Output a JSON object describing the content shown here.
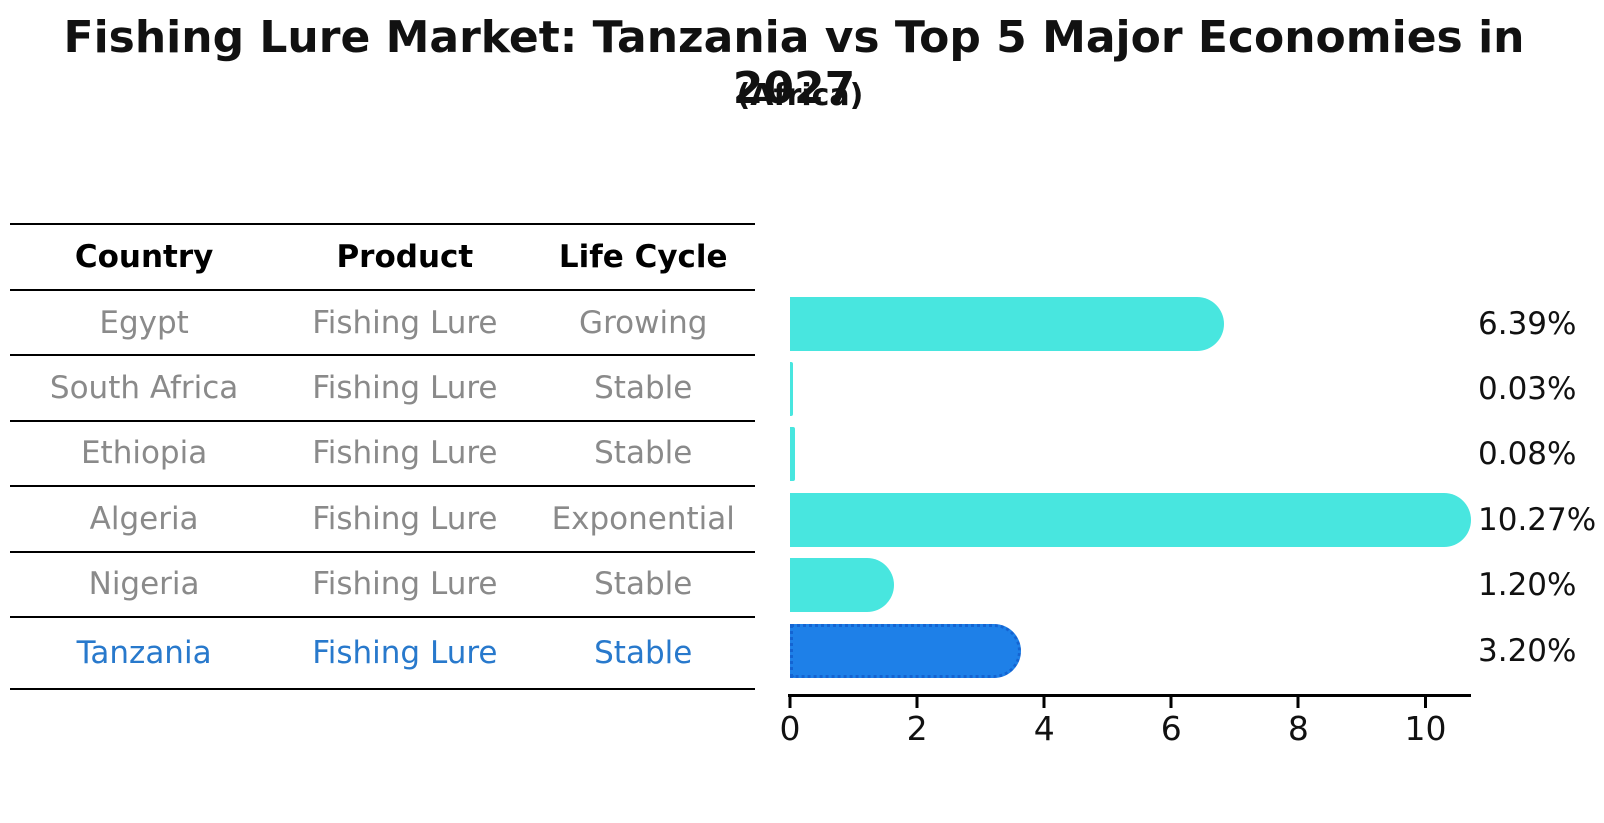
{
  "title": "Fishing Lure Market: Tanzania vs Top 5 Major Economies in 2027",
  "subtitle": "(Africa)",
  "table": {
    "headers": [
      "Country",
      "Product",
      "Life Cycle"
    ],
    "rows": [
      {
        "country": "Egypt",
        "product": "Fishing Lure",
        "life_cycle": "Growing",
        "highlight": false
      },
      {
        "country": "South Africa",
        "product": "Fishing Lure",
        "life_cycle": "Stable",
        "highlight": false
      },
      {
        "country": "Ethiopia",
        "product": "Fishing Lure",
        "life_cycle": "Stable",
        "highlight": false
      },
      {
        "country": "Algeria",
        "product": "Fishing Lure",
        "life_cycle": "Exponential",
        "highlight": false
      },
      {
        "country": "Nigeria",
        "product": "Fishing Lure",
        "life_cycle": "Stable",
        "highlight": false
      },
      {
        "country": "Tanzania",
        "product": "Fishing Lure",
        "life_cycle": "Stable",
        "highlight": true
      }
    ]
  },
  "chart_data": {
    "type": "bar",
    "orientation": "horizontal",
    "title": "Fishing Lure Market: Tanzania vs Top 5 Major Economies in 2027",
    "subtitle": "(Africa)",
    "categories": [
      "Egypt",
      "South Africa",
      "Ethiopia",
      "Algeria",
      "Nigeria",
      "Tanzania"
    ],
    "values": [
      6.39,
      0.03,
      0.08,
      10.27,
      1.2,
      3.2
    ],
    "value_labels": [
      "6.39%",
      "0.03%",
      "0.08%",
      "10.27%",
      "1.20%",
      "3.20%"
    ],
    "xticks": [
      "0",
      "2",
      "4",
      "6",
      "8",
      "10"
    ],
    "xlim": [
      0,
      10.7
    ],
    "grid": false,
    "legend": false,
    "bar_color": "#48e6df",
    "highlight_index": 5,
    "highlight_color": "#1e80e8",
    "highlight_border_color": "#1464d2",
    "highlight_text_color": "#2879cc"
  }
}
